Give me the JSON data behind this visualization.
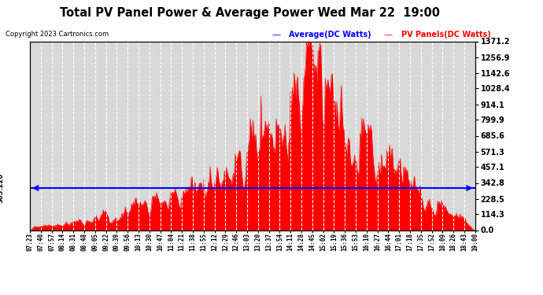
{
  "title": "Total PV Panel Power & Average Power Wed Mar 22  19:00",
  "copyright": "Copyright 2023 Cartronics.com",
  "legend_avg": "Average(DC Watts)",
  "legend_pv": "PV Panels(DC Watts)",
  "avg_value": 305.22,
  "avg_label": "305.220",
  "ymin": 0.0,
  "ymax": 1371.2,
  "yticks": [
    0.0,
    114.3,
    228.5,
    342.8,
    457.1,
    571.3,
    685.6,
    799.9,
    914.1,
    1028.4,
    1142.6,
    1256.9,
    1371.2
  ],
  "bg_color": "#ffffff",
  "plot_bg_color": "#d8d8d8",
  "grid_color": "#ffffff",
  "bar_color": "#ff0000",
  "avg_line_color": "#0000ff",
  "title_color": "#000000",
  "copyright_color": "#000000",
  "avg_legend_color": "#0000ff",
  "pv_legend_color": "#ff0000",
  "xtick_labels": [
    "07:23",
    "07:40",
    "07:57",
    "08:14",
    "08:31",
    "08:48",
    "09:05",
    "09:22",
    "09:39",
    "09:56",
    "10:13",
    "10:30",
    "10:47",
    "11:04",
    "11:21",
    "11:38",
    "11:55",
    "12:12",
    "12:29",
    "12:46",
    "13:03",
    "13:20",
    "13:37",
    "13:54",
    "14:11",
    "14:28",
    "14:45",
    "15:02",
    "15:19",
    "15:36",
    "15:53",
    "16:10",
    "16:27",
    "16:44",
    "17:01",
    "17:18",
    "17:35",
    "17:52",
    "18:09",
    "18:26",
    "18:43",
    "19:00"
  ],
  "figsize": [
    6.9,
    3.75
  ],
  "dpi": 100
}
